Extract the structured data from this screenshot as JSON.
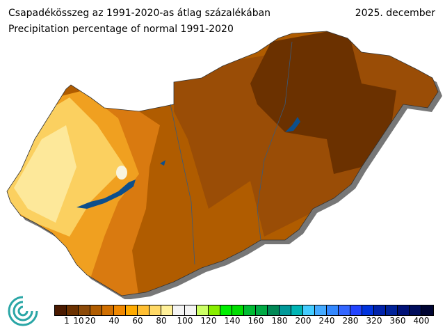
{
  "title_hu": "Csapadékösszeg az 1991-2020-as átlag százalékában",
  "title_en": "Precipitation percentage of normal 1991-2020",
  "period": "2025. december",
  "legend": {
    "colors": [
      "#4a1a00",
      "#6b3100",
      "#8c4a08",
      "#b05c00",
      "#d06f00",
      "#f08800",
      "#ffab00",
      "#ffbf33",
      "#ffd966",
      "#fff099",
      "#f4f4f4",
      "#f4f4f4",
      "#ccff66",
      "#88ee00",
      "#00ee00",
      "#00dd00",
      "#00bb33",
      "#00aa44",
      "#008855",
      "#009999",
      "#00b5b5",
      "#44ccff",
      "#44aaff",
      "#3388ff",
      "#3366ff",
      "#2244ff",
      "#0033dd",
      "#0022aa",
      "#002299",
      "#001177",
      "#000d5c",
      "#000533"
    ],
    "ticks": [
      {
        "label": "1",
        "boundary": 1
      },
      {
        "label": "10",
        "boundary": 2
      },
      {
        "label": "20",
        "boundary": 3
      },
      {
        "label": "40",
        "boundary": 5
      },
      {
        "label": "60",
        "boundary": 7
      },
      {
        "label": "80",
        "boundary": 9
      },
      {
        "label": "100",
        "boundary": 11
      },
      {
        "label": "120",
        "boundary": 13
      },
      {
        "label": "140",
        "boundary": 15
      },
      {
        "label": "160",
        "boundary": 17
      },
      {
        "label": "180",
        "boundary": 19
      },
      {
        "label": "200",
        "boundary": 21
      },
      {
        "label": "240",
        "boundary": 23
      },
      {
        "label": "280",
        "boundary": 25
      },
      {
        "label": "320",
        "boundary": 27
      },
      {
        "label": "360",
        "boundary": 29
      },
      {
        "label": "400",
        "boundary": 31
      }
    ]
  },
  "map_colors": {
    "water": "#0d4f8c",
    "darkest": "#6b3100",
    "dark": "#8c4a08",
    "mid": "#b05c00",
    "orange": "#d97a10",
    "light": "#f0a020",
    "yellow": "#fbd060",
    "pale": "#fde89a"
  }
}
